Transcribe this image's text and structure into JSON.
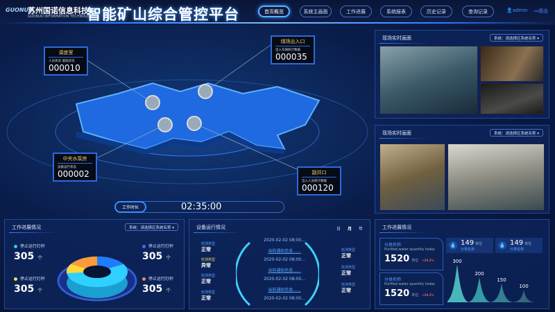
{
  "header": {
    "logo": "GUONUO",
    "company": "苏州国诺信息科技",
    "company_en": "GUONUO INFORMATION TECHNOLOGY",
    "title": "智能矿山综合管控平台",
    "nav": [
      {
        "label": "首页概览",
        "active": true
      },
      {
        "label": "系统主画面"
      },
      {
        "label": "工作进展"
      },
      {
        "label": "系统报表"
      },
      {
        "label": "历史记录"
      },
      {
        "label": "查询记录"
      }
    ],
    "user": "admin",
    "logout": "退出"
  },
  "map": {
    "boxes": [
      {
        "name": "调度室",
        "sub": "人员状况 值班状况",
        "value": "000010"
      },
      {
        "name": "煤场出入口",
        "sub": "出入车辆统计数据",
        "value": "000035"
      },
      {
        "name": "中央水泵房",
        "sub": "设备运行状态",
        "value": "000002"
      },
      {
        "name": "副井口",
        "sub": "出入人员统计数据",
        "value": "000120"
      }
    ],
    "work_time_label": "工作时长",
    "work_time": "02:35:00"
  },
  "cameras": [
    {
      "title": "现场实时画面",
      "select": "系统：请选择区系统名称 ▾"
    },
    {
      "title": "现场实时画面",
      "select": "系统：请选择区系统名称 ▾"
    }
  ],
  "progress": {
    "title": "工作进展情况",
    "select": "系统：请选择区系统名称 ▾",
    "stats": [
      {
        "label": "停止运行灯杆",
        "value": "305",
        "unit": "个",
        "color": "#2fc8ff"
      },
      {
        "label": "停止运行灯杆",
        "value": "305",
        "unit": "个",
        "color": "#3a6cff"
      },
      {
        "label": "停止运行灯杆",
        "value": "305",
        "unit": "个",
        "color": "#f2e04a"
      },
      {
        "label": "停止运行灯杆",
        "value": "305",
        "unit": "个",
        "color": "#f08a5a"
      }
    ],
    "colors": [
      "#1f7bff",
      "#2fd0ff",
      "#ffd83a",
      "#ff9a3a"
    ]
  },
  "devices": {
    "title": "设备运行情况",
    "periods": [
      "日",
      "月",
      "年"
    ],
    "left": [
      {
        "type": "检测类型",
        "status": "正常"
      },
      {
        "type": "检测类型",
        "status": "异常"
      },
      {
        "type": "检测类型",
        "status": "正常"
      },
      {
        "type": "检测类型",
        "status": "正常"
      }
    ],
    "right": [
      {
        "type": "检测类型",
        "status": "正常"
      },
      {
        "type": "检测类型",
        "status": "正常"
      },
      {
        "type": "检测类型",
        "status": "正常"
      }
    ],
    "logs": [
      "2020-02-02   08:00...",
      "当前通知信息......",
      "2020-02-02   08:00...",
      "当前通知信息......",
      "2020-02-02   08:00...",
      "当前通知信息......",
      "2020-02-02   08:00..."
    ]
  },
  "water": {
    "title": "工作进展情况",
    "cards": [
      {
        "name": "分类名称",
        "en": "Purified water quantity today",
        "value": "1520",
        "unit": "单位",
        "change": "+20.2%"
      },
      {
        "name": "分类名称",
        "en": "Purified water quantity today",
        "value": "1520",
        "unit": "单位",
        "change": "+20.2%"
      }
    ],
    "minis": [
      {
        "value": "149",
        "unit": "单位",
        "label": "分类名称",
        "icon": "water-drop-icon"
      },
      {
        "value": "149",
        "unit": "单位",
        "label": "分类名称",
        "icon": "water-drop-icon"
      }
    ]
  },
  "chart_data": {
    "type": "area",
    "categories": [
      "",
      "",
      "",
      ""
    ],
    "values": [
      300,
      200,
      150,
      100
    ],
    "data_labels": [
      "300",
      "200",
      "150",
      "100"
    ]
  }
}
